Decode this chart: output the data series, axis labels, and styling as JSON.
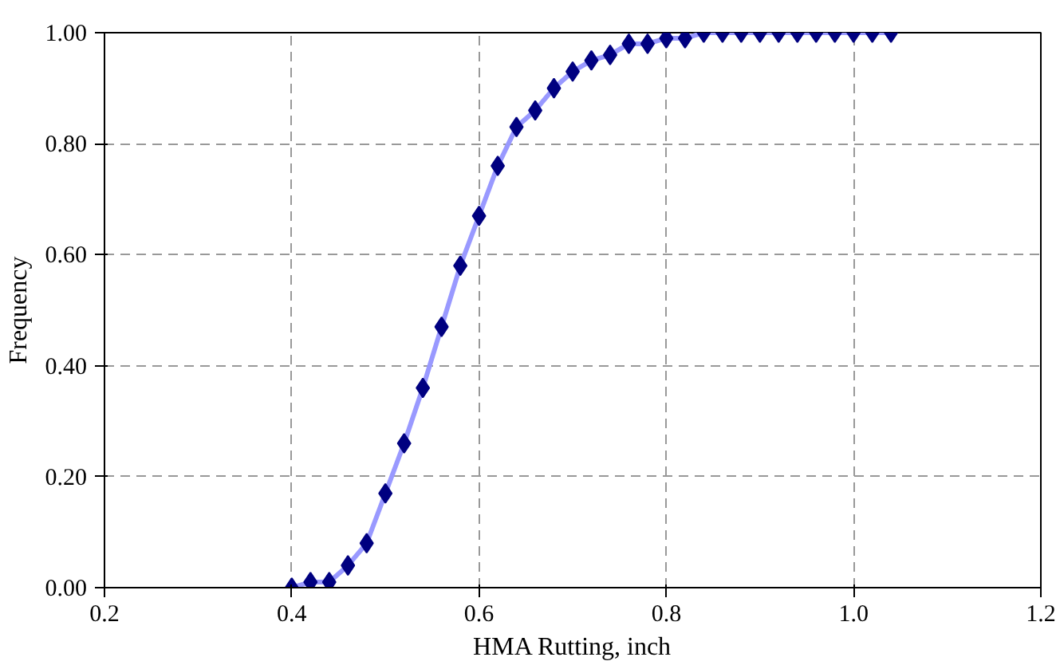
{
  "chart_data": {
    "type": "line",
    "xlabel": "HMA Rutting, inch",
    "ylabel": "Frequency",
    "x": [
      0.4,
      0.42,
      0.44,
      0.46,
      0.48,
      0.5,
      0.52,
      0.54,
      0.56,
      0.58,
      0.6,
      0.62,
      0.64,
      0.66,
      0.68,
      0.7,
      0.72,
      0.74,
      0.76,
      0.78,
      0.8,
      0.82,
      0.84,
      0.86,
      0.88,
      0.9,
      0.92,
      0.94,
      0.96,
      0.98,
      1.0,
      1.02,
      1.04
    ],
    "series": [
      {
        "color": "#9999ff",
        "marker": "none",
        "values": [
          0.0,
          0.01,
          0.01,
          0.04,
          0.08,
          0.17,
          0.26,
          0.36,
          0.47,
          0.58,
          0.67,
          0.76,
          0.83,
          0.86,
          0.9,
          0.93,
          0.95,
          0.96,
          0.98,
          0.98,
          0.99,
          0.99,
          1.0,
          1.0,
          1.0,
          1.0,
          1.0,
          1.0,
          1.0,
          1.0,
          1.0,
          1.0,
          1.0
        ]
      },
      {
        "type": "scatter",
        "color": "#000080",
        "marker": "diamond",
        "values": [
          0.0,
          0.01,
          0.01,
          0.04,
          0.08,
          0.17,
          0.26,
          0.36,
          0.47,
          0.58,
          0.67,
          0.76,
          0.83,
          0.86,
          0.9,
          0.93,
          0.95,
          0.96,
          0.98,
          0.98,
          0.99,
          0.99,
          1.0,
          1.0,
          1.0,
          1.0,
          1.0,
          1.0,
          1.0,
          1.0,
          1.0,
          1.0,
          1.0
        ]
      }
    ],
    "xlim": [
      0.2,
      1.2
    ],
    "xticks": [
      0.2,
      0.4,
      0.6,
      0.8,
      {
        "value": 1.0,
        "label": "1.0"
      },
      1.2
    ],
    "ylim": [
      0,
      1
    ],
    "yticks": [
      {
        "value": 0,
        "label": "0.00"
      },
      {
        "value": 0.2,
        "label": "0.20"
      },
      {
        "value": 0.4,
        "label": "0.40"
      },
      {
        "value": 0.6,
        "label": "0.60"
      },
      {
        "value": 0.8,
        "label": "0.80"
      },
      {
        "value": 1.0,
        "label": "1.00"
      }
    ],
    "grid": true,
    "line_style": "solid"
  }
}
